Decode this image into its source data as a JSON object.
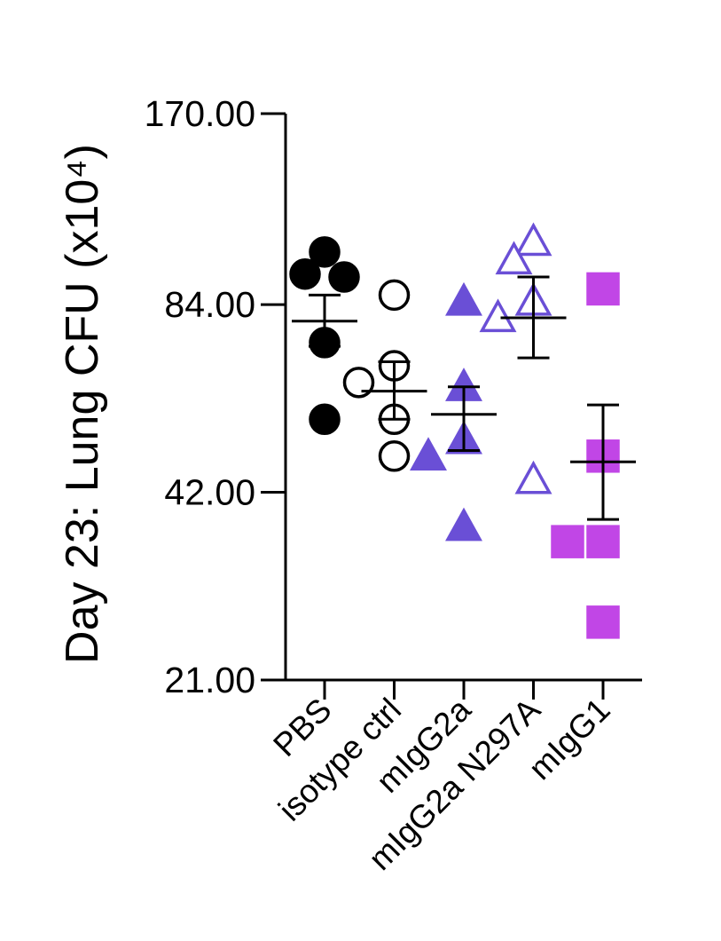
{
  "chart_data": {
    "type": "scatter",
    "ylabel": "Day 23: Lung CFU (x10⁴)",
    "yscale": "log",
    "ylim": [
      21,
      170
    ],
    "yticks": [
      "170.00",
      "84.00",
      "42.00",
      "21.00"
    ],
    "categories": [
      "PBS",
      "isotype ctrl",
      "mIgG2a",
      "mIgG2a N297A",
      "mIgG1"
    ],
    "groups": [
      {
        "name": "PBS",
        "marker": "circle",
        "fill": true,
        "color": "#000000",
        "values": [
          102,
          94,
          93,
          73,
          55
        ],
        "mean": 79,
        "sem_low": 72,
        "sem_high": 87
      },
      {
        "name": "isotype ctrl",
        "marker": "circle",
        "fill": false,
        "color": "#000000",
        "values": [
          87,
          67,
          63,
          55,
          48
        ],
        "mean": 61,
        "sem_low": 55,
        "sem_high": 68
      },
      {
        "name": "mIgG2a",
        "marker": "triangle",
        "fill": true,
        "color": "#6a4fd6",
        "values": [
          85,
          62,
          51,
          48,
          37
        ],
        "mean": 56,
        "sem_low": 49,
        "sem_high": 62
      },
      {
        "name": "mIgG2a N297A",
        "marker": "triangle",
        "fill": false,
        "color": "#6a4fd6",
        "values": [
          106,
          99,
          85,
          80,
          44
        ],
        "mean": 80,
        "sem_low": 69,
        "sem_high": 93
      },
      {
        "name": "mIgG1",
        "marker": "square",
        "fill": true,
        "color": "#c146e6",
        "values": [
          89,
          48,
          35,
          35,
          26
        ],
        "mean": 47,
        "sem_low": 38,
        "sem_high": 58
      }
    ]
  }
}
